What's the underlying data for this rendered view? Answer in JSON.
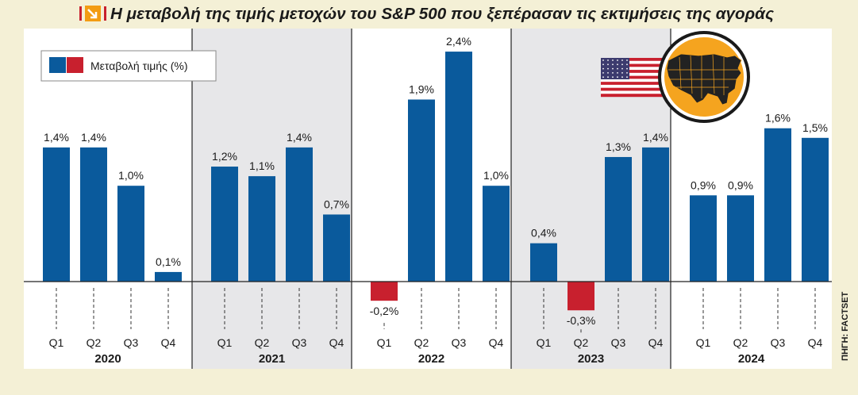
{
  "title": "Η μεταβολή της τιμής μετοχών του S&P 500 που ξεπέρασαν τις εκτιμήσεις της αγοράς",
  "source": "ΠΗΓΗ: FACTSET",
  "colors": {
    "positive": "#0a5a9c",
    "negative": "#c8202e",
    "background": "#f4f0d6",
    "panel_light": "#ffffff",
    "panel_shaded": "#e7e7e9",
    "badge": "#f5a41f",
    "title_icon": "#f39c12"
  },
  "icons": [
    "arrow-down-right-icon",
    "us-flag-icon",
    "us-map-icon"
  ],
  "chart_data": {
    "type": "bar",
    "legend": {
      "label": "Μεταβολή τιμής (%)",
      "position": "top-left"
    },
    "ylim": [
      -0.35,
      2.6
    ],
    "groups": [
      {
        "year": "2020",
        "quarters": [
          "Q1",
          "Q2",
          "Q3",
          "Q4"
        ],
        "values": [
          1.4,
          1.4,
          1.0,
          0.1
        ],
        "labels": [
          "1,4%",
          "1,4%",
          "1,0%",
          "0,1%"
        ]
      },
      {
        "year": "2021",
        "quarters": [
          "Q1",
          "Q2",
          "Q3",
          "Q4"
        ],
        "values": [
          1.2,
          1.1,
          1.4,
          0.7
        ],
        "labels": [
          "1,2%",
          "1,1%",
          "1,4%",
          "0,7%"
        ]
      },
      {
        "year": "2022",
        "quarters": [
          "Q1",
          "Q2",
          "Q3",
          "Q4"
        ],
        "values": [
          -0.2,
          1.9,
          2.4,
          1.0
        ],
        "labels": [
          "-0,2%",
          "1,9%",
          "2,4%",
          "1,0%"
        ]
      },
      {
        "year": "2023",
        "quarters": [
          "Q1",
          "Q2",
          "Q3",
          "Q4"
        ],
        "values": [
          0.4,
          -0.3,
          1.3,
          1.4
        ],
        "labels": [
          "0,4%",
          "-0,3%",
          "1,3%",
          "1,4%"
        ]
      },
      {
        "year": "2024",
        "quarters": [
          "Q1",
          "Q2",
          "Q3",
          "Q4"
        ],
        "values": [
          0.9,
          0.9,
          1.6,
          1.5
        ],
        "labels": [
          "0,9%",
          "0,9%",
          "1,6%",
          "1,5%"
        ]
      }
    ]
  }
}
